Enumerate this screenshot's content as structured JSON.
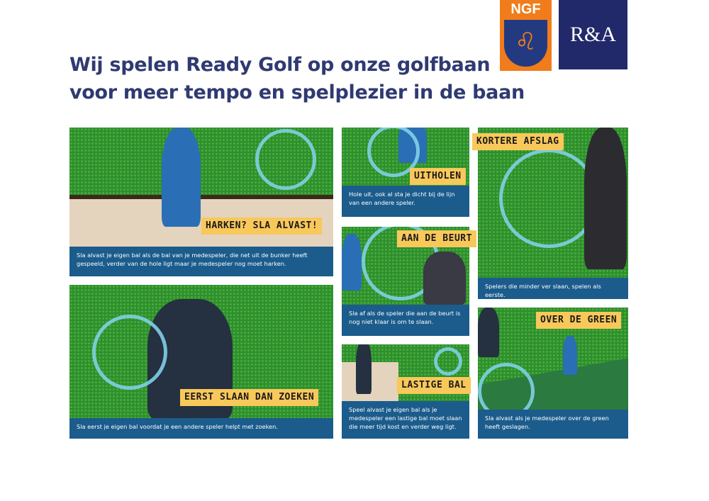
{
  "logos": {
    "ngf": "NGF",
    "ra": "R&A"
  },
  "title": {
    "line1": "Wij spelen Ready Golf op onze golfbaan",
    "line2": "voor meer tempo en spelplezier in de baan"
  },
  "panels": [
    {
      "label": "HARKEN? SLA ALVAST!",
      "text": "Sla alvast je eigen bal als de bal van je medespeler, die net uit de bunker heeft gespeeld, verder van de hole ligt maar je medespeler nog moet harken."
    },
    {
      "label": "EERST SLAAN DAN ZOEKEN",
      "text": "Sla eerst je eigen bal voordat je een andere speler helpt met zoeken."
    },
    {
      "label": "UITHOLEN",
      "text": "Hole uit, ook al sta je dicht bij de lijn van een andere speler."
    },
    {
      "label": "AAN DE BEURT",
      "text": "Sla af als de speler die aan de beurt is nog niet klaar is om te slaan."
    },
    {
      "label": "LASTIGE BAL",
      "text": "Speel alvast je eigen bal als je medespeler een lastige bal moet slaan die meer tijd kost en verder weg ligt."
    },
    {
      "label": "KORTERE AFSLAG",
      "text": "Spelers die minder ver slaan, spelen als eerste."
    },
    {
      "label": "OVER DE GREEN",
      "text": "Sla alvast als je medespeler over de green heeft geslagen."
    }
  ]
}
